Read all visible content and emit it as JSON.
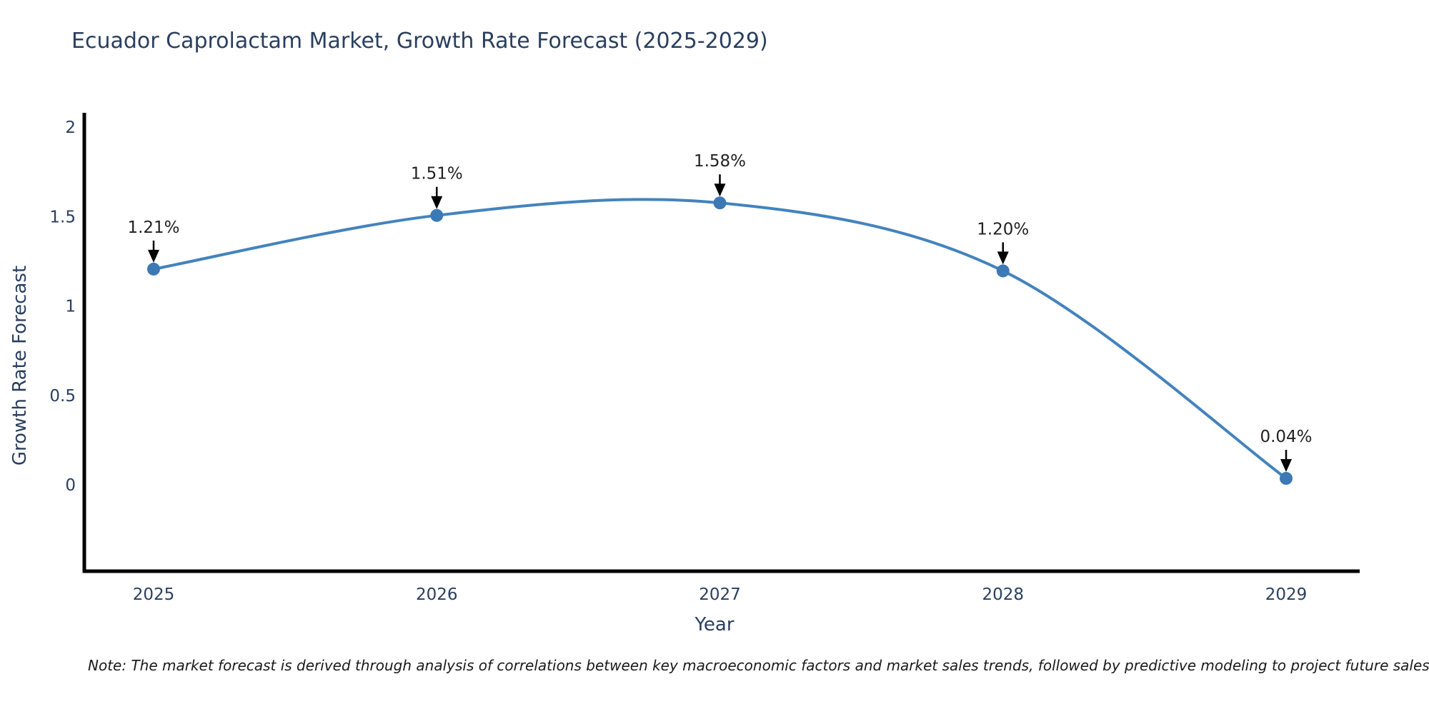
{
  "page": {
    "background": "#ffffff"
  },
  "chart_data": {
    "type": "line",
    "title": "Ecuador Caprolactam Market, Growth Rate Forecast (2025-2029)",
    "xlabel": "Year",
    "ylabel": "Growth Rate Forecast",
    "categories": [
      "2025",
      "2026",
      "2027",
      "2028",
      "2029"
    ],
    "series": [
      {
        "name": "Growth Rate Forecast",
        "values": [
          1.21,
          1.51,
          1.58,
          1.2,
          0.04
        ],
        "point_labels": [
          "1.21%",
          "1.51%",
          "1.58%",
          "1.20%",
          "0.04%"
        ]
      }
    ],
    "yticks": [
      0,
      0.5,
      1,
      1.5,
      2
    ],
    "ytick_labels": [
      "0",
      "0.5",
      "1",
      "1.5",
      "2"
    ],
    "ylim": [
      -0.47,
      2.08
    ],
    "grid": false,
    "legend": "none",
    "line_shape": "spline",
    "annotation_style": "value-label-with-down-arrow",
    "colors": {
      "line": "#4383bd",
      "marker": "#3c79b5",
      "axis": "#000000",
      "tick_text": "#2a3f5f",
      "title_text": "#2a3f5f",
      "annotation_text": "#222222",
      "arrow": "#000000"
    },
    "note": "Note: The market forecast is derived through analysis of correlations between key macroeconomic factors and market sales trends, followed by predictive modeling to project future sales"
  }
}
